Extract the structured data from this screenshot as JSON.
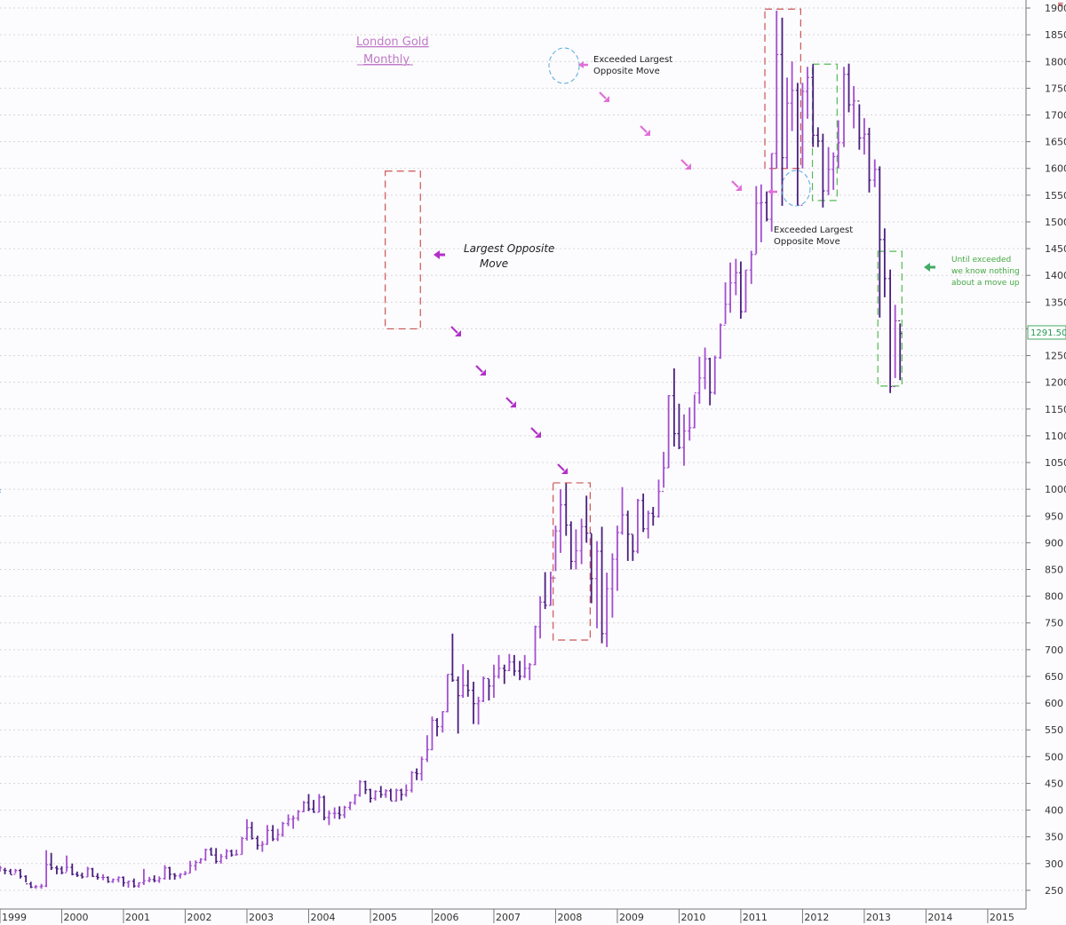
{
  "chart_data": {
    "type": "bar",
    "subtype": "ohlc-monthly",
    "title_line1": "London Gold",
    "title_line2": "Monthly",
    "current_price_label": "1291.50",
    "ylim": [
      215,
      1915
    ],
    "xlim": [
      1999.0,
      2015.62
    ],
    "grid": true,
    "y_ticks": [
      250,
      300,
      350,
      400,
      450,
      500,
      550,
      600,
      650,
      700,
      750,
      800,
      850,
      900,
      950,
      1000,
      1050,
      1100,
      1150,
      1200,
      1250,
      1300,
      1350,
      1400,
      1450,
      1500,
      1550,
      1600,
      1650,
      1700,
      1750,
      1800,
      1850,
      1900
    ],
    "x_ticks": [
      "1999",
      "2000",
      "2001",
      "2002",
      "2003",
      "2004",
      "2005",
      "2006",
      "2007",
      "2008",
      "2009",
      "2010",
      "2011",
      "2012",
      "2013",
      "2014",
      "2015"
    ],
    "annotations": [
      {
        "id": "largest-opposite-move",
        "text_lines": [
          "Largest Opposite",
          "Move"
        ]
      },
      {
        "id": "exceeded-top",
        "text_lines": [
          "Exceeded Largest",
          "Opposite Move"
        ]
      },
      {
        "id": "exceeded-mid",
        "text_lines": [
          "Exceeded Largest",
          "Opposite Move"
        ]
      },
      {
        "id": "until-exceeded",
        "text_lines": [
          "Until exceeded",
          "we know nothing",
          "about a move up"
        ]
      }
    ],
    "boxes": [
      {
        "color": "#cc5555",
        "x0": 2005.24,
        "x1": 2005.81,
        "y0": 1300,
        "y1": 1595
      },
      {
        "color": "#cc5555",
        "x0": 2007.96,
        "x1": 2008.56,
        "y0": 718,
        "y1": 1012
      },
      {
        "color": "#cc5555",
        "x0": 2011.39,
        "x1": 2011.97,
        "y0": 1600,
        "y1": 1898
      },
      {
        "color": "#55bb55",
        "x0": 2012.16,
        "x1": 2012.56,
        "y0": 1540,
        "y1": 1795
      },
      {
        "color": "#55bb55",
        "x0": 2013.22,
        "x1": 2013.61,
        "y0": 1193,
        "y1": 1445
      }
    ],
    "points": [
      [
        1999.0,
        287,
        296,
        285,
        292
      ],
      [
        1999.08,
        288,
        292,
        280,
        287
      ],
      [
        1999.17,
        286,
        290,
        280,
        279
      ],
      [
        1999.25,
        280,
        290,
        282,
        287
      ],
      [
        1999.33,
        287,
        290,
        272,
        276
      ],
      [
        1999.42,
        276,
        278,
        265,
        262
      ],
      [
        1999.5,
        262,
        266,
        254,
        256
      ],
      [
        1999.58,
        256,
        260,
        253,
        257
      ],
      [
        1999.67,
        257,
        262,
        253,
        258
      ],
      [
        1999.75,
        258,
        325,
        256,
        298
      ],
      [
        1999.83,
        298,
        320,
        288,
        292
      ],
      [
        1999.92,
        292,
        296,
        280,
        290
      ],
      [
        2000.0,
        290,
        295,
        280,
        283
      ],
      [
        2000.08,
        283,
        315,
        285,
        293
      ],
      [
        2000.17,
        293,
        300,
        278,
        280
      ],
      [
        2000.25,
        280,
        285,
        275,
        278
      ],
      [
        2000.33,
        278,
        283,
        272,
        275
      ],
      [
        2000.42,
        275,
        294,
        275,
        290
      ],
      [
        2000.5,
        290,
        292,
        275,
        276
      ],
      [
        2000.58,
        276,
        282,
        270,
        274
      ],
      [
        2000.67,
        274,
        280,
        269,
        274
      ],
      [
        2000.75,
        274,
        276,
        264,
        266
      ],
      [
        2000.83,
        266,
        272,
        264,
        270
      ],
      [
        2000.92,
        270,
        276,
        265,
        274
      ],
      [
        2001.0,
        274,
        276,
        257,
        264
      ],
      [
        2001.08,
        264,
        268,
        255,
        267
      ],
      [
        2001.17,
        267,
        272,
        255,
        258
      ],
      [
        2001.25,
        258,
        265,
        255,
        264
      ],
      [
        2001.33,
        264,
        290,
        260,
        268
      ],
      [
        2001.42,
        268,
        275,
        265,
        270
      ],
      [
        2001.5,
        270,
        278,
        265,
        268
      ],
      [
        2001.58,
        268,
        276,
        264,
        272
      ],
      [
        2001.67,
        272,
        297,
        270,
        292
      ],
      [
        2001.75,
        292,
        294,
        270,
        280
      ],
      [
        2001.83,
        280,
        282,
        270,
        277
      ],
      [
        2001.92,
        277,
        282,
        272,
        280
      ],
      [
        2002.0,
        280,
        286,
        278,
        282
      ],
      [
        2002.08,
        282,
        305,
        282,
        296
      ],
      [
        2002.17,
        296,
        306,
        287,
        302
      ],
      [
        2002.25,
        302,
        310,
        300,
        308
      ],
      [
        2002.33,
        308,
        328,
        305,
        326
      ],
      [
        2002.42,
        326,
        330,
        315,
        316
      ],
      [
        2002.5,
        316,
        329,
        300,
        304
      ],
      [
        2002.58,
        304,
        318,
        300,
        313
      ],
      [
        2002.67,
        313,
        327,
        308,
        323
      ],
      [
        2002.75,
        323,
        326,
        313,
        316
      ],
      [
        2002.83,
        316,
        326,
        315,
        317
      ],
      [
        2002.92,
        317,
        350,
        317,
        347
      ],
      [
        2003.0,
        347,
        383,
        343,
        367
      ],
      [
        2003.08,
        367,
        378,
        345,
        347
      ],
      [
        2003.17,
        347,
        352,
        326,
        334
      ],
      [
        2003.25,
        334,
        342,
        322,
        336
      ],
      [
        2003.33,
        336,
        372,
        335,
        362
      ],
      [
        2003.42,
        362,
        372,
        342,
        346
      ],
      [
        2003.5,
        346,
        365,
        342,
        354
      ],
      [
        2003.58,
        354,
        378,
        350,
        375
      ],
      [
        2003.67,
        375,
        392,
        370,
        383
      ],
      [
        2003.75,
        383,
        390,
        365,
        385
      ],
      [
        2003.83,
        385,
        400,
        380,
        397
      ],
      [
        2003.92,
        397,
        417,
        396,
        414
      ],
      [
        2004.0,
        414,
        430,
        398,
        402
      ],
      [
        2004.08,
        402,
        419,
        395,
        396
      ],
      [
        2004.17,
        396,
        430,
        396,
        424
      ],
      [
        2004.25,
        424,
        427,
        381,
        386
      ],
      [
        2004.33,
        386,
        399,
        372,
        394
      ],
      [
        2004.42,
        394,
        405,
        384,
        394
      ],
      [
        2004.5,
        394,
        407,
        383,
        391
      ],
      [
        2004.58,
        391,
        408,
        385,
        405
      ],
      [
        2004.67,
        405,
        416,
        400,
        414
      ],
      [
        2004.75,
        414,
        430,
        410,
        428
      ],
      [
        2004.83,
        428,
        456,
        425,
        453
      ],
      [
        2004.92,
        453,
        455,
        430,
        438
      ],
      [
        2005.0,
        438,
        440,
        414,
        422
      ],
      [
        2005.08,
        422,
        437,
        418,
        435
      ],
      [
        2005.17,
        435,
        445,
        423,
        429
      ],
      [
        2005.25,
        429,
        439,
        423,
        436
      ],
      [
        2005.33,
        436,
        440,
        418,
        417
      ],
      [
        2005.42,
        417,
        440,
        416,
        437
      ],
      [
        2005.5,
        437,
        440,
        418,
        429
      ],
      [
        2005.58,
        429,
        448,
        425,
        437
      ],
      [
        2005.67,
        437,
        473,
        433,
        470
      ],
      [
        2005.75,
        470,
        478,
        456,
        468
      ],
      [
        2005.83,
        468,
        500,
        455,
        495
      ],
      [
        2005.92,
        495,
        540,
        490,
        513
      ],
      [
        2006.0,
        513,
        575,
        512,
        568
      ],
      [
        2006.08,
        568,
        572,
        538,
        556
      ],
      [
        2006.17,
        556,
        585,
        545,
        584
      ],
      [
        2006.25,
        584,
        654,
        583,
        654
      ],
      [
        2006.33,
        654,
        730,
        640,
        643
      ],
      [
        2006.42,
        643,
        650,
        543,
        614
      ],
      [
        2006.5,
        614,
        673,
        610,
        633
      ],
      [
        2006.58,
        633,
        662,
        612,
        624
      ],
      [
        2006.67,
        624,
        640,
        561,
        599
      ],
      [
        2006.75,
        599,
        612,
        560,
        604
      ],
      [
        2006.83,
        604,
        650,
        602,
        646
      ],
      [
        2006.92,
        646,
        645,
        605,
        632
      ],
      [
        2007.0,
        632,
        672,
        610,
        650
      ],
      [
        2007.08,
        650,
        690,
        646,
        665
      ],
      [
        2007.17,
        665,
        672,
        636,
        661
      ],
      [
        2007.25,
        661,
        692,
        660,
        677
      ],
      [
        2007.33,
        677,
        690,
        651,
        660
      ],
      [
        2007.42,
        660,
        679,
        643,
        650
      ],
      [
        2007.5,
        650,
        690,
        647,
        665
      ],
      [
        2007.58,
        665,
        675,
        643,
        672
      ],
      [
        2007.67,
        672,
        745,
        671,
        743
      ],
      [
        2007.75,
        743,
        800,
        721,
        789
      ],
      [
        2007.83,
        789,
        845,
        776,
        783
      ],
      [
        2007.92,
        783,
        846,
        782,
        834
      ],
      [
        2008.0,
        834,
        932,
        847,
        922
      ],
      [
        2008.08,
        922,
        1000,
        881,
        971
      ],
      [
        2008.17,
        971,
        1011,
        913,
        933
      ],
      [
        2008.25,
        933,
        940,
        850,
        865
      ],
      [
        2008.33,
        865,
        925,
        850,
        885
      ],
      [
        2008.42,
        885,
        945,
        860,
        930
      ],
      [
        2008.5,
        930,
        988,
        900,
        918
      ],
      [
        2008.58,
        918,
        917,
        787,
        833
      ],
      [
        2008.67,
        833,
        903,
        740,
        884
      ],
      [
        2008.75,
        884,
        930,
        712,
        730
      ],
      [
        2008.83,
        730,
        844,
        705,
        814
      ],
      [
        2008.92,
        814,
        880,
        760,
        869
      ],
      [
        2009.0,
        869,
        932,
        810,
        919
      ],
      [
        2009.08,
        919,
        1004,
        915,
        952
      ],
      [
        2009.17,
        952,
        960,
        866,
        916
      ],
      [
        2009.25,
        916,
        915,
        866,
        884
      ],
      [
        2009.33,
        884,
        982,
        880,
        979
      ],
      [
        2009.42,
        979,
        992,
        920,
        926
      ],
      [
        2009.5,
        926,
        960,
        908,
        955
      ],
      [
        2009.58,
        955,
        967,
        932,
        949
      ],
      [
        2009.67,
        949,
        1018,
        947,
        996
      ],
      [
        2009.75,
        996,
        1070,
        1003,
        1040
      ],
      [
        2009.83,
        1040,
        1176,
        1040,
        1175
      ],
      [
        2009.92,
        1175,
        1226,
        1080,
        1104
      ],
      [
        2010.0,
        1104,
        1160,
        1075,
        1078
      ],
      [
        2010.08,
        1078,
        1140,
        1044,
        1109
      ],
      [
        2010.17,
        1109,
        1153,
        1091,
        1115
      ],
      [
        2010.25,
        1115,
        1177,
        1114,
        1180
      ],
      [
        2010.33,
        1180,
        1248,
        1160,
        1208
      ],
      [
        2010.42,
        1208,
        1265,
        1187,
        1244
      ],
      [
        2010.5,
        1244,
        1246,
        1157,
        1181
      ],
      [
        2010.58,
        1181,
        1250,
        1177,
        1246
      ],
      [
        2010.67,
        1246,
        1310,
        1244,
        1307
      ],
      [
        2010.75,
        1307,
        1387,
        1309,
        1346
      ],
      [
        2010.83,
        1346,
        1424,
        1330,
        1386
      ],
      [
        2010.92,
        1386,
        1431,
        1363,
        1405
      ],
      [
        2011.0,
        1405,
        1426,
        1319,
        1332
      ],
      [
        2011.08,
        1332,
        1410,
        1331,
        1410
      ],
      [
        2011.17,
        1410,
        1446,
        1384,
        1439
      ],
      [
        2011.25,
        1439,
        1567,
        1440,
        1535
      ],
      [
        2011.33,
        1535,
        1570,
        1462,
        1536
      ],
      [
        2011.42,
        1536,
        1557,
        1501,
        1505
      ],
      [
        2011.5,
        1505,
        1628,
        1482,
        1628
      ],
      [
        2011.58,
        1628,
        1895,
        1600,
        1813
      ],
      [
        2011.67,
        1813,
        1882,
        1530,
        1620
      ],
      [
        2011.75,
        1620,
        1770,
        1600,
        1722
      ],
      [
        2011.83,
        1722,
        1800,
        1670,
        1746
      ],
      [
        2011.92,
        1746,
        1760,
        1531,
        1531
      ],
      [
        2012.0,
        1531,
        1760,
        1600,
        1744
      ],
      [
        2012.08,
        1744,
        1790,
        1693,
        1770
      ],
      [
        2012.17,
        1770,
        1795,
        1640,
        1662
      ],
      [
        2012.25,
        1662,
        1677,
        1640,
        1651
      ],
      [
        2012.33,
        1651,
        1665,
        1527,
        1558
      ],
      [
        2012.42,
        1558,
        1640,
        1550,
        1598
      ],
      [
        2012.5,
        1598,
        1630,
        1560,
        1622
      ],
      [
        2012.58,
        1622,
        1690,
        1600,
        1648
      ],
      [
        2012.67,
        1648,
        1790,
        1640,
        1776
      ],
      [
        2012.75,
        1776,
        1796,
        1705,
        1719
      ],
      [
        2012.83,
        1719,
        1754,
        1675,
        1726
      ],
      [
        2012.92,
        1726,
        1720,
        1635,
        1657
      ],
      [
        2013.0,
        1657,
        1694,
        1626,
        1664
      ],
      [
        2013.08,
        1664,
        1676,
        1555,
        1578
      ],
      [
        2013.17,
        1578,
        1617,
        1565,
        1598
      ],
      [
        2013.25,
        1598,
        1604,
        1321,
        1467
      ],
      [
        2013.33,
        1467,
        1488,
        1359,
        1394
      ],
      [
        2013.42,
        1394,
        1411,
        1180,
        1192
      ],
      [
        2013.5,
        1192,
        1345,
        1208,
        1315
      ],
      [
        2013.58,
        1315,
        1310,
        1204,
        1291.5
      ]
    ]
  }
}
